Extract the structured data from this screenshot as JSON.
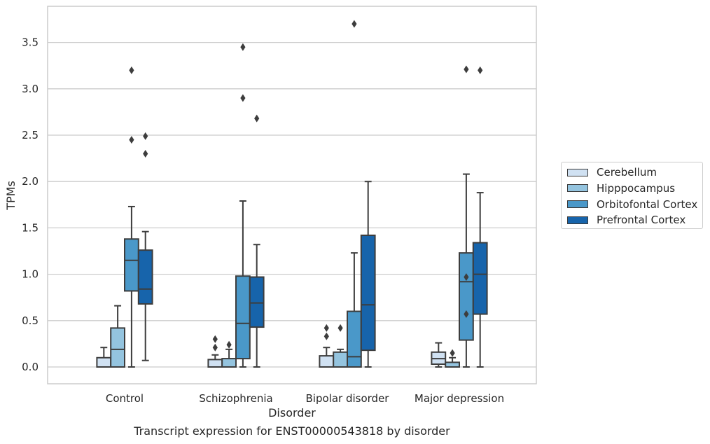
{
  "chart_data": {
    "type": "box",
    "xlabel": "Disorder",
    "ylabel": "TPMs",
    "caption": "Transcript expression for ENST00000543818 by disorder",
    "ylim": [
      -0.18,
      3.9
    ],
    "yticks": [
      0.0,
      0.5,
      1.0,
      1.5,
      2.0,
      2.5,
      3.0,
      3.5
    ],
    "ytick_labels": [
      "0.0",
      "0.5",
      "1.0",
      "1.5",
      "2.0",
      "2.5",
      "3.0",
      "3.5"
    ],
    "grid": "horizontal",
    "legend_position": "right",
    "categories": [
      "Control",
      "Schizophrenia",
      "Bipolar disorder",
      "Major depression"
    ],
    "series": [
      {
        "name": "Cerebellum",
        "color": "#d0e1f2",
        "boxes": [
          {
            "whislo": 0.0,
            "q1": 0.0,
            "med": 0.0,
            "q3": 0.1,
            "whishi": 0.21,
            "fliers": []
          },
          {
            "whislo": 0.0,
            "q1": 0.0,
            "med": 0.0,
            "q3": 0.08,
            "whishi": 0.13,
            "fliers": [
              0.21,
              0.3
            ]
          },
          {
            "whislo": 0.0,
            "q1": 0.0,
            "med": 0.0,
            "q3": 0.12,
            "whishi": 0.21,
            "fliers": [
              0.33,
              0.42
            ]
          },
          {
            "whislo": 0.0,
            "q1": 0.03,
            "med": 0.09,
            "q3": 0.16,
            "whishi": 0.26,
            "fliers": []
          }
        ]
      },
      {
        "name": "Hipppocampus",
        "color": "#94c4df",
        "boxes": [
          {
            "whislo": 0.0,
            "q1": 0.0,
            "med": 0.19,
            "q3": 0.42,
            "whishi": 0.66,
            "fliers": []
          },
          {
            "whislo": 0.0,
            "q1": 0.0,
            "med": 0.0,
            "q3": 0.09,
            "whishi": 0.19,
            "fliers": [
              0.24
            ]
          },
          {
            "whislo": 0.0,
            "q1": 0.0,
            "med": 0.0,
            "q3": 0.16,
            "whishi": 0.19,
            "fliers": [
              0.42
            ]
          },
          {
            "whislo": 0.0,
            "q1": 0.0,
            "med": 0.0,
            "q3": 0.05,
            "whishi": 0.1,
            "fliers": [
              0.15
            ]
          }
        ]
      },
      {
        "name": "Orbitofontal Cortex",
        "color": "#4a98c9",
        "boxes": [
          {
            "whislo": 0.0,
            "q1": 0.82,
            "med": 1.15,
            "q3": 1.38,
            "whishi": 1.73,
            "fliers": [
              2.45,
              3.2
            ]
          },
          {
            "whislo": 0.0,
            "q1": 0.09,
            "med": 0.47,
            "q3": 0.98,
            "whishi": 1.79,
            "fliers": [
              2.9,
              3.45
            ]
          },
          {
            "whislo": 0.0,
            "q1": 0.0,
            "med": 0.11,
            "q3": 0.6,
            "whishi": 1.23,
            "fliers": [
              3.7
            ]
          },
          {
            "whislo": 0.0,
            "q1": 0.29,
            "med": 0.92,
            "q3": 1.23,
            "whishi": 2.08,
            "fliers": [
              0.57,
              0.97,
              3.21
            ]
          }
        ]
      },
      {
        "name": "Prefrontal Cortex",
        "color": "#1764ab",
        "boxes": [
          {
            "whislo": 0.07,
            "q1": 0.68,
            "med": 0.84,
            "q3": 1.26,
            "whishi": 1.46,
            "fliers": [
              2.3,
              2.49
            ]
          },
          {
            "whislo": 0.0,
            "q1": 0.43,
            "med": 0.69,
            "q3": 0.97,
            "whishi": 1.32,
            "fliers": [
              2.68
            ]
          },
          {
            "whislo": 0.0,
            "q1": 0.18,
            "med": 0.67,
            "q3": 1.42,
            "whishi": 2.0,
            "fliers": []
          },
          {
            "whislo": 0.0,
            "q1": 0.57,
            "med": 1.0,
            "q3": 1.34,
            "whishi": 1.88,
            "fliers": [
              3.2
            ]
          }
        ]
      }
    ]
  }
}
